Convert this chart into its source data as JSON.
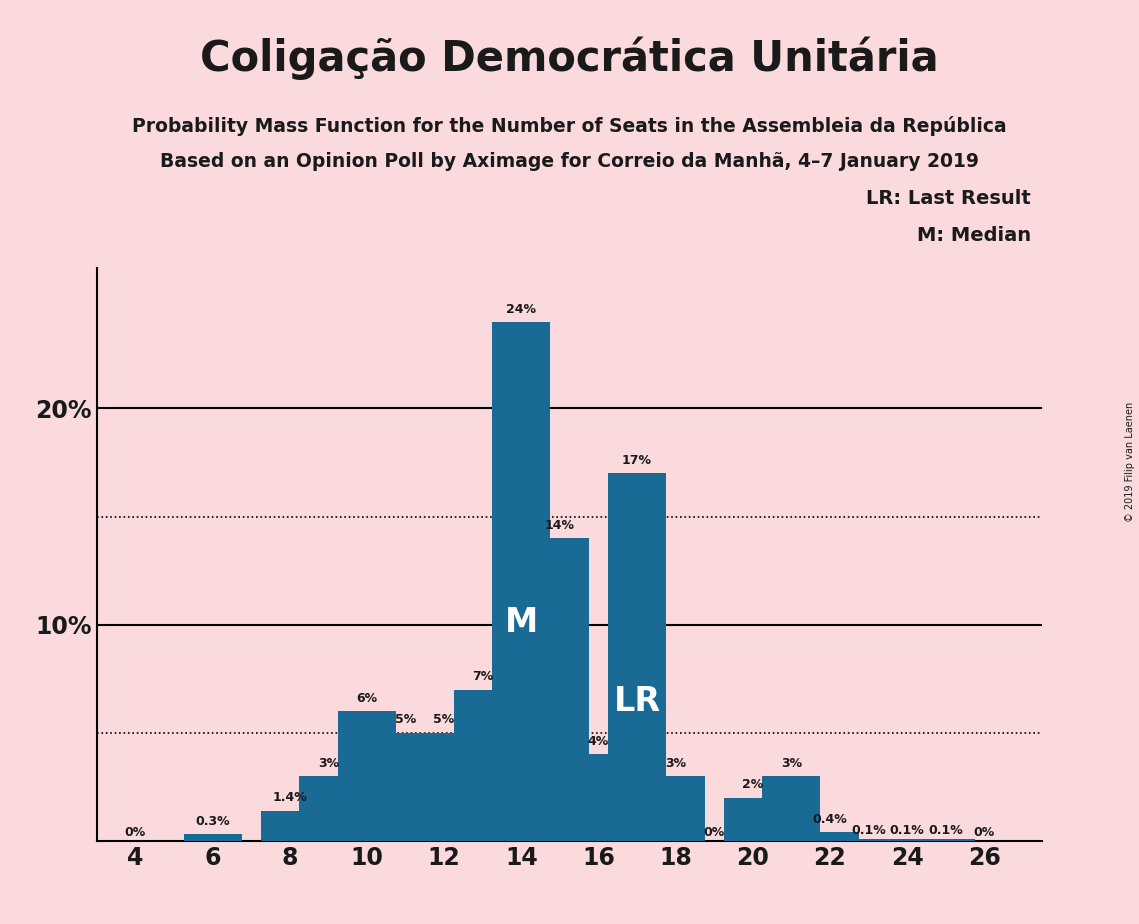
{
  "title": "Coligação Democrática Unitária",
  "subtitle1": "Probability Mass Function for the Number of Seats in the Assembleia da República",
  "subtitle2": "Based on an Opinion Poll by Aximage for Correio da Manhã, 4–7 January 2019",
  "copyright": "© 2019 Filip van Laenen",
  "legend1": "LR: Last Result",
  "legend2": "M: Median",
  "background_color": "#fadadd",
  "bar_color": "#1a6a96",
  "seats": [
    4,
    6,
    8,
    9,
    10,
    11,
    12,
    13,
    14,
    15,
    16,
    17,
    18,
    19,
    20,
    21,
    22,
    23,
    24,
    25,
    26
  ],
  "probabilities": [
    0.0,
    0.003,
    0.014,
    0.03,
    0.06,
    0.05,
    0.05,
    0.07,
    0.24,
    0.14,
    0.04,
    0.17,
    0.03,
    0.0,
    0.02,
    0.03,
    0.004,
    0.001,
    0.001,
    0.001,
    0.0
  ],
  "labels": [
    "0%",
    "0.3%",
    "1.4%",
    "3%",
    "6%",
    "5%",
    "5%",
    "7%",
    "24%",
    "14%",
    "4%",
    "17%",
    "3%",
    "0%",
    "2%",
    "3%",
    "0.4%",
    "0.1%",
    "0.1%",
    "0.1%",
    "0%"
  ],
  "median_seat": 14,
  "last_result_seat": 17,
  "dotted_lines": [
    0.05,
    0.15
  ],
  "xlim": [
    3.0,
    27.5
  ],
  "ylim": [
    0,
    0.265
  ]
}
